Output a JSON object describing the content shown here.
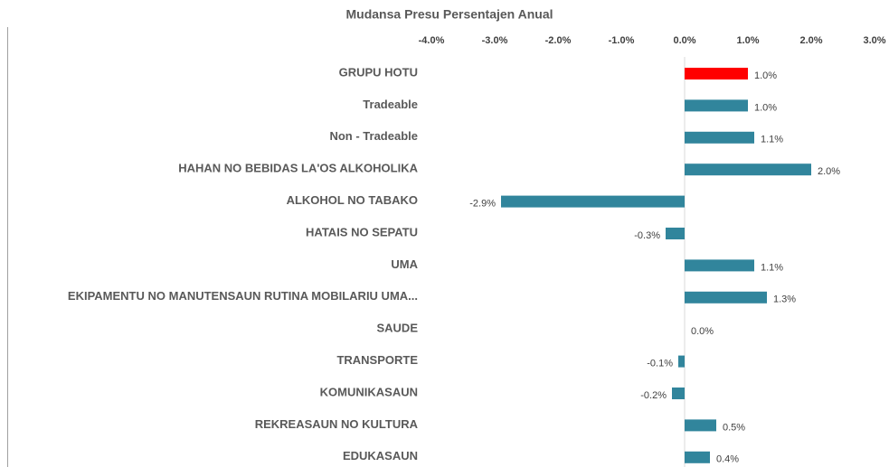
{
  "chart_data": {
    "type": "hbar",
    "title": "Mudansa Presu Persentajen Anual",
    "categories": [
      "GRUPU HOTU",
      "Tradeable",
      "Non - Tradeable",
      "HAHAN NO BEBIDAS LA'OS ALKOHOLIKA",
      "ALKOHOL NO TABAKO",
      "HATAIS NO SEPATU",
      "UMA",
      "EKIPAMENTU NO MANUTENSAUN RUTINA MOBILARIU UMA...",
      "SAUDE",
      "TRANSPORTE",
      "KOMUNIKASAUN",
      "REKREASAUN NO KULTURA",
      "EDUKASAUN"
    ],
    "values": [
      1.0,
      1.0,
      1.1,
      2.0,
      -2.9,
      -0.3,
      1.1,
      1.3,
      0.0,
      -0.1,
      -0.2,
      0.5,
      0.4
    ],
    "value_labels": [
      "1.0%",
      "1.0%",
      "1.1%",
      "2.0%",
      "-2.9%",
      "-0.3%",
      "1.1%",
      "1.3%",
      "0.0%",
      "-0.1%",
      "-0.2%",
      "0.5%",
      "0.4%"
    ],
    "colors": [
      "#ff0000",
      "#31859c",
      "#31859c",
      "#31859c",
      "#31859c",
      "#31859c",
      "#31859c",
      "#31859c",
      "#31859c",
      "#31859c",
      "#31859c",
      "#31859c",
      "#31859c"
    ],
    "xlim": [
      -4,
      3
    ],
    "xticks": [
      {
        "value": -4,
        "label": "-4.0%"
      },
      {
        "value": -3,
        "label": "-3.0%"
      },
      {
        "value": -2,
        "label": "-2.0%"
      },
      {
        "value": -1,
        "label": "-1.0%"
      },
      {
        "value": 0,
        "label": "0.0%"
      },
      {
        "value": 1,
        "label": "1.0%"
      },
      {
        "value": 2,
        "label": "2.0%"
      },
      {
        "value": 3,
        "label": "3.0%"
      }
    ]
  }
}
